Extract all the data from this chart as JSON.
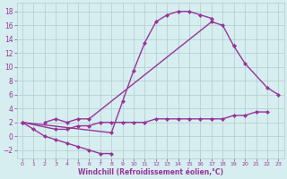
{
  "xlabel": "Windchill (Refroidissement éolien,°C)",
  "bg_color": "#d6eef0",
  "grid_color": "#b0cccc",
  "line_color": "#993399",
  "marker": "D",
  "marker_size": 2.0,
  "line_width": 1.0,
  "xlim": [
    -0.5,
    23.5
  ],
  "ylim": [
    -3.2,
    19.2
  ],
  "xticks": [
    0,
    1,
    2,
    3,
    4,
    5,
    6,
    7,
    8,
    9,
    10,
    11,
    12,
    13,
    14,
    15,
    16,
    17,
    18,
    19,
    20,
    21,
    22,
    23
  ],
  "yticks": [
    -2,
    0,
    2,
    4,
    6,
    8,
    10,
    12,
    14,
    16,
    18
  ],
  "series": [
    {
      "x": [
        0,
        1,
        2,
        3,
        4,
        5,
        6,
        7,
        8
      ],
      "y": [
        2,
        1,
        0,
        -0.5,
        -1,
        -1.5,
        -2,
        -2.5,
        -2.5
      ]
    },
    {
      "x": [
        0,
        8,
        9,
        10,
        11,
        12,
        13,
        14,
        15,
        16,
        17
      ],
      "y": [
        2,
        0.5,
        5,
        9.5,
        13.5,
        16.5,
        17.5,
        18,
        18,
        17.5,
        17
      ]
    },
    {
      "x": [
        2,
        3,
        4,
        5,
        6,
        17,
        18,
        19
      ],
      "y": [
        2,
        2.5,
        2,
        2.5,
        2.5,
        16.5,
        16,
        13
      ]
    },
    {
      "x": [
        0,
        3,
        4,
        5,
        6,
        7,
        8,
        9,
        10,
        11,
        12,
        13,
        14,
        15,
        16,
        17,
        18,
        19,
        20,
        21,
        22
      ],
      "y": [
        2,
        1,
        1,
        1.5,
        1.5,
        2,
        2,
        2,
        2,
        2,
        2.5,
        2.5,
        2.5,
        2.5,
        2.5,
        2.5,
        2.5,
        3,
        3,
        3.5,
        3.5
      ]
    },
    {
      "x": [
        19,
        20,
        22,
        23
      ],
      "y": [
        13,
        10.5,
        7,
        6
      ]
    }
  ]
}
